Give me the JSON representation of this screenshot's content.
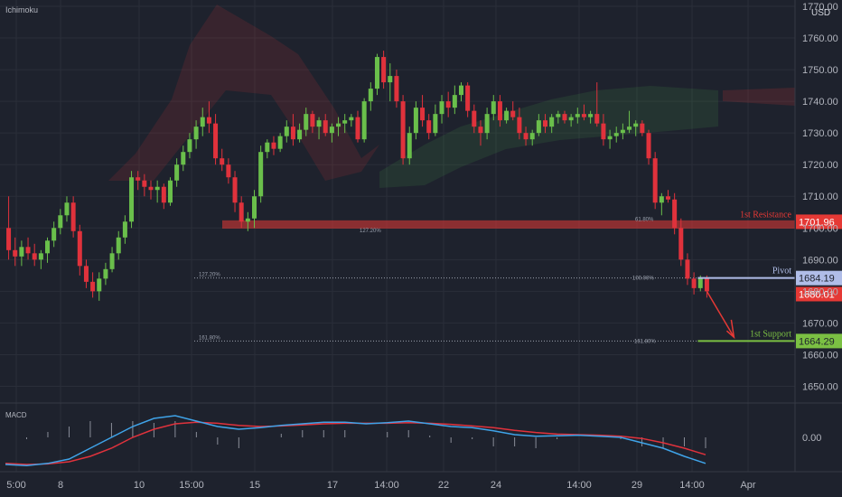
{
  "indicator_main": "Ichimoku",
  "indicator_sub": "MACD",
  "currency": "USD",
  "colors": {
    "bg": "#1e222d",
    "grid": "#2a2e39",
    "bull": "#6abf4b",
    "bear": "#e0323c",
    "resistance": "#e53935",
    "pivot": "#b0bde8",
    "support": "#7bc043",
    "text": "#b2b5be",
    "macd": "#3fa3e8",
    "signal": "#e0323c"
  },
  "chart_data": {
    "type": "candlestick",
    "symbol_unit": "USD",
    "x_ticks": [
      "5:00",
      "8",
      "10",
      "15:00",
      "15",
      "17",
      "14:00",
      "22",
      "24",
      "14:00",
      "29",
      "14:00",
      "Apr"
    ],
    "y_ticks": [
      1650,
      1660,
      1670,
      1680,
      1690,
      1700,
      1710,
      1720,
      1730,
      1740,
      1750,
      1760,
      1770
    ],
    "ylim": [
      1645,
      1772
    ],
    "candles": [
      {
        "o": 1700,
        "h": 1710,
        "l": 1690,
        "c": 1693
      },
      {
        "o": 1693,
        "h": 1697,
        "l": 1688,
        "c": 1691
      },
      {
        "o": 1691,
        "h": 1696,
        "l": 1688,
        "c": 1694
      },
      {
        "o": 1694,
        "h": 1697,
        "l": 1690,
        "c": 1692
      },
      {
        "o": 1692,
        "h": 1695,
        "l": 1688,
        "c": 1690
      },
      {
        "o": 1690,
        "h": 1693,
        "l": 1687,
        "c": 1692
      },
      {
        "o": 1692,
        "h": 1697,
        "l": 1689,
        "c": 1696
      },
      {
        "o": 1696,
        "h": 1702,
        "l": 1694,
        "c": 1700
      },
      {
        "o": 1700,
        "h": 1706,
        "l": 1698,
        "c": 1704
      },
      {
        "o": 1704,
        "h": 1710,
        "l": 1702,
        "c": 1708
      },
      {
        "o": 1708,
        "h": 1710,
        "l": 1697,
        "c": 1699
      },
      {
        "o": 1699,
        "h": 1701,
        "l": 1685,
        "c": 1688
      },
      {
        "o": 1688,
        "h": 1690,
        "l": 1681,
        "c": 1683
      },
      {
        "o": 1683,
        "h": 1686,
        "l": 1678,
        "c": 1680
      },
      {
        "o": 1680,
        "h": 1686,
        "l": 1677,
        "c": 1684
      },
      {
        "o": 1684,
        "h": 1689,
        "l": 1682,
        "c": 1687
      },
      {
        "o": 1687,
        "h": 1694,
        "l": 1686,
        "c": 1692
      },
      {
        "o": 1692,
        "h": 1699,
        "l": 1690,
        "c": 1697
      },
      {
        "o": 1697,
        "h": 1704,
        "l": 1695,
        "c": 1702
      },
      {
        "o": 1702,
        "h": 1718,
        "l": 1700,
        "c": 1716
      },
      {
        "o": 1716,
        "h": 1718,
        "l": 1712,
        "c": 1715
      },
      {
        "o": 1715,
        "h": 1717,
        "l": 1710,
        "c": 1713
      },
      {
        "o": 1713,
        "h": 1715,
        "l": 1709,
        "c": 1712
      },
      {
        "o": 1712,
        "h": 1715,
        "l": 1708,
        "c": 1713
      },
      {
        "o": 1713,
        "h": 1714,
        "l": 1706,
        "c": 1708
      },
      {
        "o": 1708,
        "h": 1716,
        "l": 1707,
        "c": 1715
      },
      {
        "o": 1715,
        "h": 1722,
        "l": 1713,
        "c": 1720
      },
      {
        "o": 1720,
        "h": 1726,
        "l": 1718,
        "c": 1724
      },
      {
        "o": 1724,
        "h": 1730,
        "l": 1722,
        "c": 1728
      },
      {
        "o": 1728,
        "h": 1734,
        "l": 1725,
        "c": 1732
      },
      {
        "o": 1732,
        "h": 1738,
        "l": 1729,
        "c": 1735
      },
      {
        "o": 1735,
        "h": 1740,
        "l": 1730,
        "c": 1733
      },
      {
        "o": 1733,
        "h": 1736,
        "l": 1720,
        "c": 1722
      },
      {
        "o": 1722,
        "h": 1725,
        "l": 1718,
        "c": 1720
      },
      {
        "o": 1720,
        "h": 1722,
        "l": 1714,
        "c": 1716
      },
      {
        "o": 1716,
        "h": 1718,
        "l": 1705,
        "c": 1708
      },
      {
        "o": 1708,
        "h": 1710,
        "l": 1700,
        "c": 1702
      },
      {
        "o": 1702,
        "h": 1705,
        "l": 1699,
        "c": 1703
      },
      {
        "o": 1703,
        "h": 1712,
        "l": 1700,
        "c": 1710
      },
      {
        "o": 1710,
        "h": 1726,
        "l": 1708,
        "c": 1724
      },
      {
        "o": 1724,
        "h": 1728,
        "l": 1722,
        "c": 1727
      },
      {
        "o": 1727,
        "h": 1729,
        "l": 1723,
        "c": 1725
      },
      {
        "o": 1725,
        "h": 1730,
        "l": 1724,
        "c": 1729
      },
      {
        "o": 1729,
        "h": 1734,
        "l": 1727,
        "c": 1732
      },
      {
        "o": 1732,
        "h": 1736,
        "l": 1726,
        "c": 1728
      },
      {
        "o": 1728,
        "h": 1733,
        "l": 1727,
        "c": 1731
      },
      {
        "o": 1731,
        "h": 1738,
        "l": 1729,
        "c": 1736
      },
      {
        "o": 1736,
        "h": 1737,
        "l": 1730,
        "c": 1732
      },
      {
        "o": 1732,
        "h": 1735,
        "l": 1728,
        "c": 1734
      },
      {
        "o": 1734,
        "h": 1736,
        "l": 1729,
        "c": 1730
      },
      {
        "o": 1730,
        "h": 1733,
        "l": 1727,
        "c": 1732
      },
      {
        "o": 1732,
        "h": 1735,
        "l": 1729,
        "c": 1733
      },
      {
        "o": 1733,
        "h": 1736,
        "l": 1730,
        "c": 1734
      },
      {
        "o": 1734,
        "h": 1736,
        "l": 1732,
        "c": 1735
      },
      {
        "o": 1735,
        "h": 1737,
        "l": 1727,
        "c": 1728
      },
      {
        "o": 1728,
        "h": 1741,
        "l": 1727,
        "c": 1740
      },
      {
        "o": 1740,
        "h": 1746,
        "l": 1737,
        "c": 1744
      },
      {
        "o": 1744,
        "h": 1755,
        "l": 1742,
        "c": 1754
      },
      {
        "o": 1754,
        "h": 1756,
        "l": 1744,
        "c": 1746
      },
      {
        "o": 1746,
        "h": 1752,
        "l": 1740,
        "c": 1748
      },
      {
        "o": 1748,
        "h": 1750,
        "l": 1738,
        "c": 1740
      },
      {
        "o": 1740,
        "h": 1742,
        "l": 1720,
        "c": 1722
      },
      {
        "o": 1722,
        "h": 1732,
        "l": 1720,
        "c": 1730
      },
      {
        "o": 1730,
        "h": 1740,
        "l": 1728,
        "c": 1738
      },
      {
        "o": 1738,
        "h": 1742,
        "l": 1732,
        "c": 1734
      },
      {
        "o": 1734,
        "h": 1736,
        "l": 1728,
        "c": 1730
      },
      {
        "o": 1730,
        "h": 1739,
        "l": 1729,
        "c": 1736
      },
      {
        "o": 1736,
        "h": 1742,
        "l": 1733,
        "c": 1740
      },
      {
        "o": 1740,
        "h": 1743,
        "l": 1735,
        "c": 1738
      },
      {
        "o": 1738,
        "h": 1745,
        "l": 1736,
        "c": 1742
      },
      {
        "o": 1742,
        "h": 1746,
        "l": 1740,
        "c": 1745
      },
      {
        "o": 1745,
        "h": 1746,
        "l": 1735,
        "c": 1737
      },
      {
        "o": 1737,
        "h": 1739,
        "l": 1730,
        "c": 1732
      },
      {
        "o": 1732,
        "h": 1734,
        "l": 1726,
        "c": 1730
      },
      {
        "o": 1730,
        "h": 1738,
        "l": 1728,
        "c": 1736
      },
      {
        "o": 1736,
        "h": 1742,
        "l": 1734,
        "c": 1740
      },
      {
        "o": 1740,
        "h": 1742,
        "l": 1732,
        "c": 1734
      },
      {
        "o": 1734,
        "h": 1738,
        "l": 1733,
        "c": 1737
      },
      {
        "o": 1737,
        "h": 1740,
        "l": 1734,
        "c": 1735
      },
      {
        "o": 1735,
        "h": 1738,
        "l": 1728,
        "c": 1730
      },
      {
        "o": 1730,
        "h": 1732,
        "l": 1726,
        "c": 1728
      },
      {
        "o": 1728,
        "h": 1731,
        "l": 1726,
        "c": 1730
      },
      {
        "o": 1730,
        "h": 1736,
        "l": 1729,
        "c": 1734
      },
      {
        "o": 1734,
        "h": 1736,
        "l": 1730,
        "c": 1732
      },
      {
        "o": 1732,
        "h": 1736,
        "l": 1730,
        "c": 1735
      },
      {
        "o": 1735,
        "h": 1737,
        "l": 1733,
        "c": 1736
      },
      {
        "o": 1736,
        "h": 1737,
        "l": 1733,
        "c": 1734
      },
      {
        "o": 1734,
        "h": 1736,
        "l": 1732,
        "c": 1735
      },
      {
        "o": 1735,
        "h": 1738,
        "l": 1733,
        "c": 1736
      },
      {
        "o": 1736,
        "h": 1739,
        "l": 1734,
        "c": 1735
      },
      {
        "o": 1735,
        "h": 1737,
        "l": 1733,
        "c": 1736
      },
      {
        "o": 1736,
        "h": 1746,
        "l": 1732,
        "c": 1733
      },
      {
        "o": 1733,
        "h": 1736,
        "l": 1726,
        "c": 1728
      },
      {
        "o": 1728,
        "h": 1731,
        "l": 1725,
        "c": 1729
      },
      {
        "o": 1729,
        "h": 1732,
        "l": 1727,
        "c": 1730
      },
      {
        "o": 1730,
        "h": 1733,
        "l": 1728,
        "c": 1731
      },
      {
        "o": 1731,
        "h": 1737,
        "l": 1730,
        "c": 1732
      },
      {
        "o": 1732,
        "h": 1734,
        "l": 1729,
        "c": 1733
      },
      {
        "o": 1733,
        "h": 1734,
        "l": 1729,
        "c": 1730
      },
      {
        "o": 1730,
        "h": 1731,
        "l": 1720,
        "c": 1722
      },
      {
        "o": 1722,
        "h": 1724,
        "l": 1706,
        "c": 1708
      },
      {
        "o": 1708,
        "h": 1711,
        "l": 1704,
        "c": 1710
      },
      {
        "o": 1710,
        "h": 1712,
        "l": 1708,
        "c": 1709
      },
      {
        "o": 1709,
        "h": 1711,
        "l": 1698,
        "c": 1700
      },
      {
        "o": 1700,
        "h": 1703,
        "l": 1688,
        "c": 1690
      },
      {
        "o": 1690,
        "h": 1692,
        "l": 1682,
        "c": 1684
      },
      {
        "o": 1684,
        "h": 1686,
        "l": 1679,
        "c": 1681
      },
      {
        "o": 1681,
        "h": 1685,
        "l": 1680,
        "c": 1684
      },
      {
        "o": 1684,
        "h": 1685,
        "l": 1678,
        "c": 1680
      }
    ],
    "levels": [
      {
        "name": "1st Resistance",
        "value": 1701.96,
        "label": "1701.96"
      },
      {
        "name": "Pivot",
        "value": 1684.19,
        "label": "1684.19"
      },
      {
        "name": "1st Support",
        "value": 1664.29,
        "label": "1664.29"
      }
    ],
    "current_price": {
      "value": 1680.01,
      "label": "1680.01"
    },
    "fib_labels": {
      "left_1272": "127.20%",
      "left_1618": "161.80%",
      "right_618": "61.80%",
      "right_1000": "100.00%",
      "right_1618": "161.80%",
      "zone_1272": "127.20%"
    },
    "macd": {
      "ylim": [
        -0.06,
        0.06
      ],
      "y_ticks": [
        "0.00"
      ],
      "macd_line": [
        -0.05,
        -0.052,
        -0.048,
        -0.04,
        -0.02,
        0.0,
        0.02,
        0.035,
        0.04,
        0.03,
        0.02,
        0.015,
        0.018,
        0.022,
        0.025,
        0.028,
        0.028,
        0.025,
        0.027,
        0.03,
        0.025,
        0.02,
        0.018,
        0.012,
        0.005,
        0.002,
        0.003,
        0.004,
        0.002,
        0.0,
        -0.01,
        -0.02,
        -0.035,
        -0.048
      ],
      "signal_line": [
        -0.048,
        -0.05,
        -0.049,
        -0.045,
        -0.035,
        -0.02,
        0.0,
        0.015,
        0.025,
        0.028,
        0.026,
        0.022,
        0.02,
        0.021,
        0.023,
        0.025,
        0.026,
        0.026,
        0.026,
        0.027,
        0.026,
        0.024,
        0.021,
        0.018,
        0.013,
        0.009,
        0.006,
        0.005,
        0.004,
        0.002,
        -0.002,
        -0.01,
        -0.02,
        -0.032
      ]
    }
  }
}
